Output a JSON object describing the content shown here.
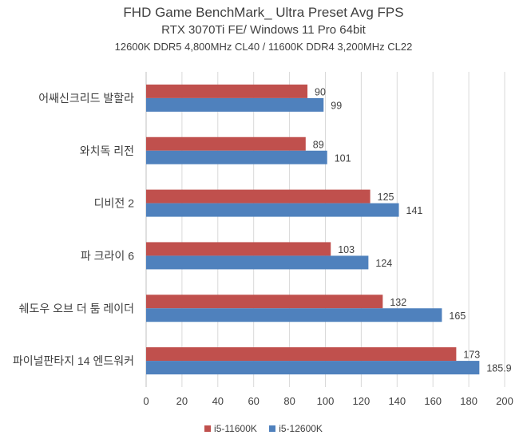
{
  "chart_data": {
    "type": "bar",
    "orientation": "horizontal",
    "title": "FHD Game BenchMark_ Ultra Preset Avg FPS",
    "subtitle": "RTX 3070Ti FE/ Windows 11 Pro 64bit",
    "subtitle2": "12600K DDR5 4,800MHz CL40 / 11600K DDR4 3,200MHz CL22",
    "categories": [
      "어쌔신크리드 발할라",
      "와치독 리전",
      "디비전 2",
      "파 크라이 6",
      "쉐도우 오브 더 툼 레이더",
      "파이널판타지 14 엔드워커"
    ],
    "series": [
      {
        "name": "i5-11600K",
        "color": "#c0504d",
        "values": [
          90,
          89,
          125,
          103,
          132,
          173
        ],
        "labels": [
          "90",
          "89",
          "125",
          "103",
          "132",
          "173"
        ]
      },
      {
        "name": "i5-12600K",
        "color": "#4f81bd",
        "values": [
          99,
          101,
          141,
          124,
          165,
          185.9
        ],
        "labels": [
          "99",
          "101",
          "141",
          "124",
          "165",
          "185.9"
        ]
      }
    ],
    "xlim": [
      0,
      200
    ],
    "xticks": [
      "0",
      "20",
      "40",
      "60",
      "80",
      "100",
      "120",
      "140",
      "160",
      "180",
      "200"
    ],
    "grid": true,
    "legend": "bottom"
  }
}
